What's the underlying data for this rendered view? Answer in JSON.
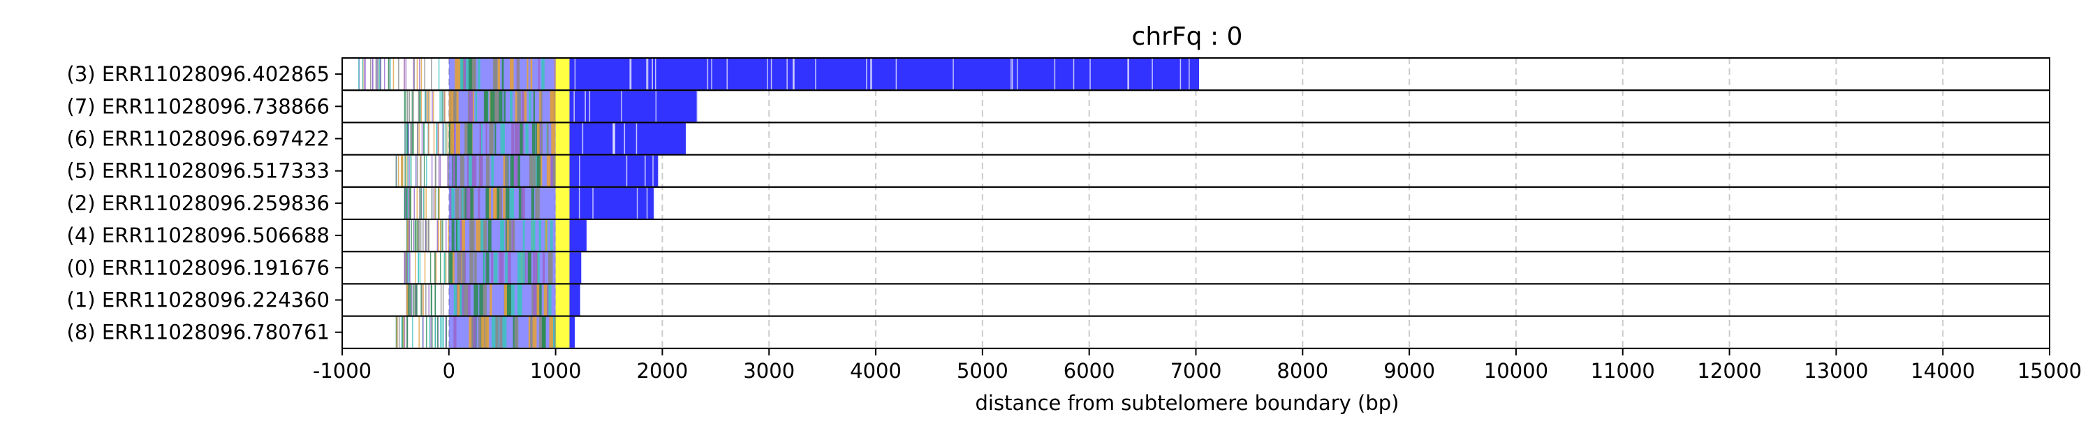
{
  "chart_data": {
    "type": "bar",
    "orientation": "horizontal",
    "title": "chrFq : 0",
    "xlabel": "distance from subtelomere boundary (bp)",
    "ylabel": "",
    "xlim": [
      -1000,
      15000
    ],
    "xticks": [
      -1000,
      0,
      1000,
      2000,
      3000,
      4000,
      5000,
      6000,
      7000,
      8000,
      9000,
      10000,
      11000,
      12000,
      13000,
      14000,
      15000
    ],
    "grid": "x-dashed",
    "colors": {
      "telomere_repeat": "#3333ff",
      "boundary_marker": "#ffff44",
      "variant_green": "#2e8b57",
      "variant_cyan": "#40c0c0",
      "variant_purple": "#9966cc",
      "variant_orange": "#e0a040",
      "grid": "#cccccc"
    },
    "reads": [
      {
        "label": "(3) ERR11028096.402865",
        "start": -850,
        "end": 7030
      },
      {
        "label": "(7) ERR11028096.738866",
        "start": -420,
        "end": 2330
      },
      {
        "label": "(6) ERR11028096.697422",
        "start": -420,
        "end": 2220
      },
      {
        "label": "(5) ERR11028096.517333",
        "start": -500,
        "end": 1960
      },
      {
        "label": "(2) ERR11028096.259836",
        "start": -420,
        "end": 1920
      },
      {
        "label": "(4) ERR11028096.506688",
        "start": -400,
        "end": 1290
      },
      {
        "label": "(0) ERR11028096.191676",
        "start": -420,
        "end": 1240
      },
      {
        "label": "(1) ERR11028096.224360",
        "start": -400,
        "end": 1230
      },
      {
        "label": "(8) ERR11028096.780761",
        "start": -500,
        "end": 1180
      }
    ]
  }
}
